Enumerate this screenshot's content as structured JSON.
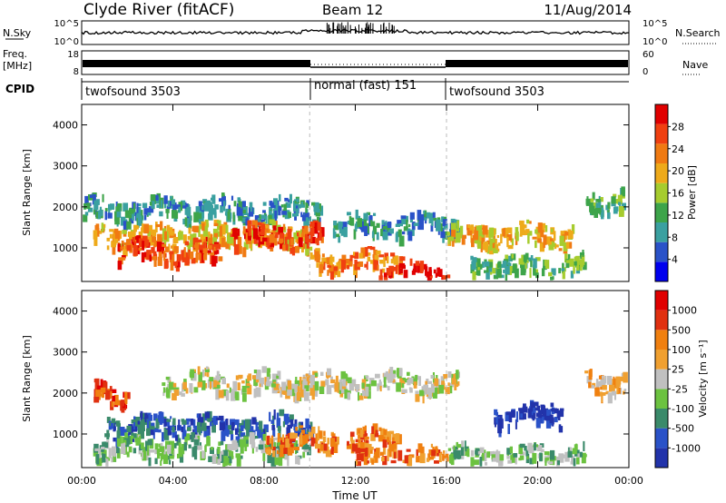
{
  "header": {
    "station": "Clyde River (fitACF)",
    "beam": "Beam 12",
    "date": "11/Aug/2014"
  },
  "noise_panel": {
    "left_label": "N.Sky",
    "left_ticks": [
      "10^5",
      "10^0"
    ],
    "right_label": "N.Search",
    "right_ticks": [
      "10^5",
      "10^0"
    ]
  },
  "freq_panel": {
    "left_label_line1": "Freq.",
    "left_label_line2": "[MHz]",
    "left_ticks": [
      "18",
      "8"
    ],
    "right_label": "Nave",
    "right_ticks": [
      "60",
      "0"
    ]
  },
  "cpid_panel": {
    "label": "CPID",
    "segments": [
      {
        "name": "twofsound 3503"
      },
      {
        "name": "normal (fast) 151"
      },
      {
        "name": "twofsound 3503"
      }
    ]
  },
  "chart_data": [
    {
      "type": "heatmap",
      "title": "",
      "xlabel": "Time UT",
      "ylabel": "Slant Range [km]",
      "colorbar_label": "Power [dB]",
      "colorbar_ticks": [
        "28",
        "24",
        "20",
        "16",
        "12",
        "8",
        "4"
      ],
      "colorbar_range": [
        0,
        30
      ],
      "x_ticks": [
        "00:00",
        "04:00",
        "08:00",
        "12:00",
        "16:00",
        "20:00",
        "00:00"
      ],
      "y_ticks": [
        "4000",
        "3000",
        "2000",
        "1000"
      ],
      "xlim_hours": [
        0,
        24
      ],
      "ylim_km": [
        180,
        4500
      ],
      "colors": [
        "#0000ee",
        "#2a52c8",
        "#3aa0a0",
        "#3da44a",
        "#a6cc2e",
        "#eeaa1a",
        "#f07a12",
        "#f04010",
        "#e00000"
      ],
      "bands": [
        {
          "start_h": 0.0,
          "end_h": 10.5,
          "center_km": 2000,
          "level": 2
        },
        {
          "start_h": 0.5,
          "end_h": 10.0,
          "center_km": 1350,
          "level": 5
        },
        {
          "start_h": 1.5,
          "end_h": 6.0,
          "center_km": 950,
          "level": 7
        },
        {
          "start_h": 6.5,
          "end_h": 10.5,
          "center_km": 1350,
          "level": 7
        },
        {
          "start_h": 10.0,
          "end_h": 14.0,
          "center_km": 700,
          "level": 6
        },
        {
          "start_h": 11.0,
          "end_h": 16.5,
          "center_km": 1600,
          "level": 2
        },
        {
          "start_h": 13.0,
          "end_h": 16.0,
          "center_km": 400,
          "level": 8
        },
        {
          "start_h": 16.0,
          "end_h": 21.5,
          "center_km": 1350,
          "level": 5
        },
        {
          "start_h": 17.0,
          "end_h": 22.0,
          "center_km": 600,
          "level": 3
        },
        {
          "start_h": 22.0,
          "end_h": 24.0,
          "center_km": 2200,
          "level": 3
        }
      ]
    },
    {
      "type": "heatmap",
      "title": "",
      "xlabel": "Time UT",
      "ylabel": "Slant Range [km]",
      "colorbar_label": "Velocity [m s⁻¹]",
      "colorbar_ticks": [
        "1000",
        "500",
        "100",
        "25",
        "-25",
        "-100",
        "-500",
        "-1000"
      ],
      "colorbar_range": [
        -1000,
        1000
      ],
      "x_ticks": [
        "00:00",
        "04:00",
        "08:00",
        "12:00",
        "16:00",
        "20:00",
        "00:00"
      ],
      "y_ticks": [
        "4000",
        "3000",
        "2000",
        "1000"
      ],
      "xlim_hours": [
        0,
        24
      ],
      "ylim_km": [
        180,
        4500
      ],
      "colors": [
        "#2233aa",
        "#2a52c8",
        "#3a8a6a",
        "#6cc240",
        "#c0c0c0",
        "#f0a030",
        "#f08010",
        "#e03010",
        "#e00000"
      ],
      "bands": [
        {
          "start_h": 0.5,
          "end_h": 2.0,
          "center_km": 2000,
          "level": 7
        },
        {
          "start_h": 1.0,
          "end_h": 10.0,
          "center_km": 1250,
          "level": 1
        },
        {
          "start_h": 3.5,
          "end_h": 16.5,
          "center_km": 2300,
          "level": 4
        },
        {
          "start_h": 0.5,
          "end_h": 10.0,
          "center_km": 700,
          "level": 3
        },
        {
          "start_h": 8.0,
          "end_h": 14.0,
          "center_km": 900,
          "level": 6
        },
        {
          "start_h": 12.0,
          "end_h": 16.0,
          "center_km": 450,
          "level": 6
        },
        {
          "start_h": 18.0,
          "end_h": 21.0,
          "center_km": 1500,
          "level": 0
        },
        {
          "start_h": 16.0,
          "end_h": 22.0,
          "center_km": 500,
          "level": 3
        },
        {
          "start_h": 22.0,
          "end_h": 24.0,
          "center_km": 2300,
          "level": 5
        }
      ]
    }
  ]
}
